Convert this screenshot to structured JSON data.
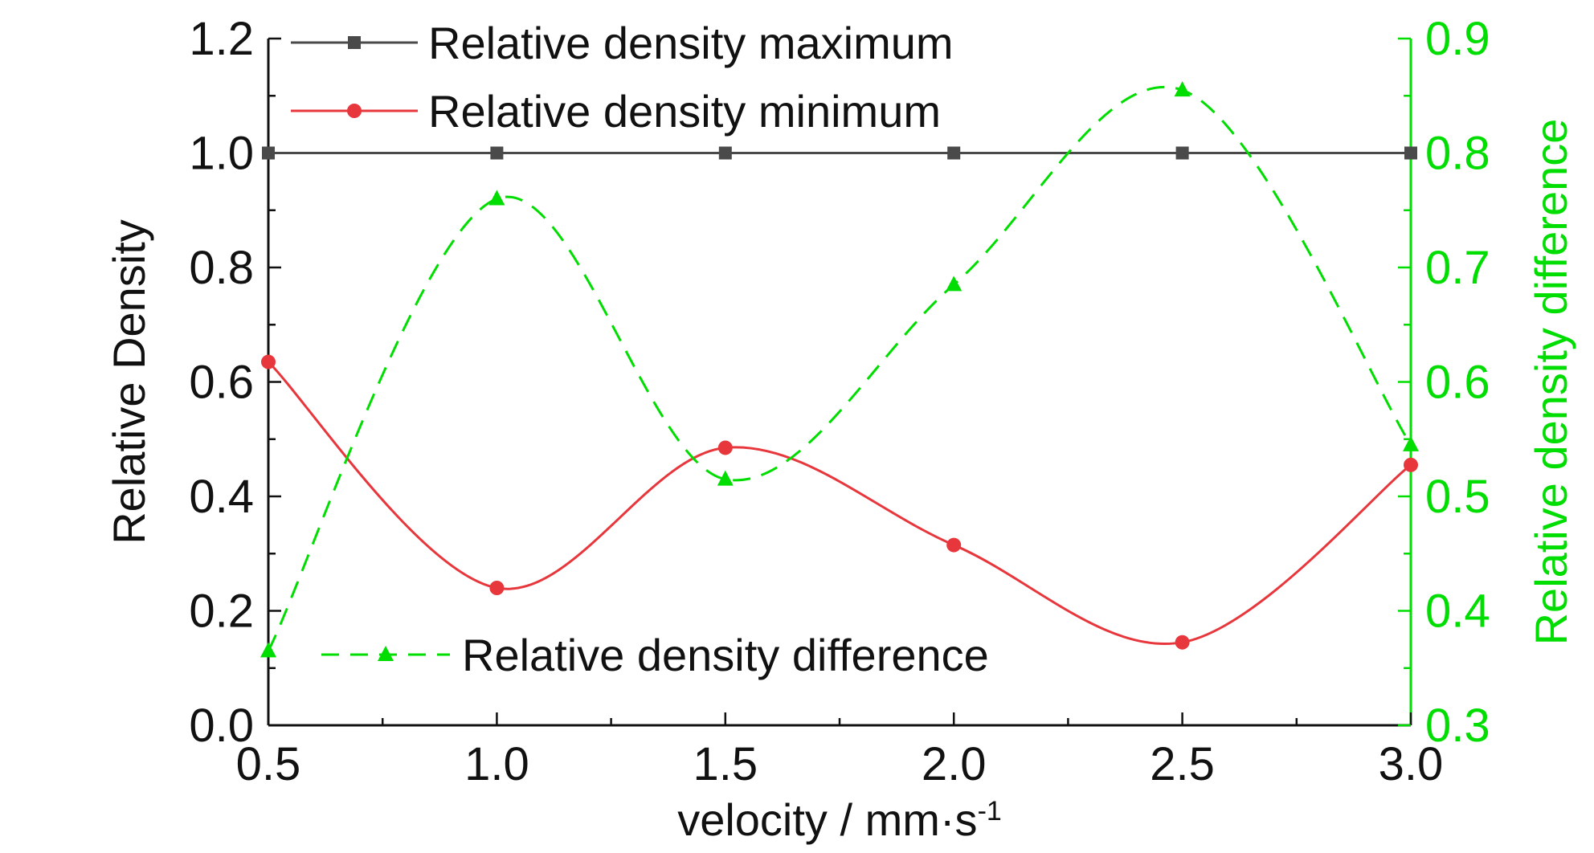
{
  "chart_data": {
    "type": "line",
    "x": [
      0.5,
      1.0,
      1.5,
      2.0,
      2.5,
      3.0
    ],
    "xlabel": "velocity / mm·s",
    "xlabel_sup": "-1",
    "ylabel": "Relative Density",
    "y2label": "Relative density difference",
    "xlim": [
      0.5,
      3.0
    ],
    "ylim": [
      0.0,
      1.2
    ],
    "y2lim": [
      0.3,
      0.9
    ],
    "x_ticks": [
      "0.5",
      "1.0",
      "1.5",
      "2.0",
      "2.5",
      "3.0"
    ],
    "y_ticks": [
      "0.0",
      "0.2",
      "0.4",
      "0.6",
      "0.8",
      "1.0",
      "1.2"
    ],
    "y2_ticks": [
      "0.3",
      "0.4",
      "0.5",
      "0.6",
      "0.7",
      "0.8",
      "0.9"
    ],
    "series": [
      {
        "name": "Relative density maximum",
        "axis": "left",
        "marker": "square",
        "line": "solid",
        "color": "#4a4a4a",
        "values": [
          1.0,
          1.0,
          1.0,
          1.0,
          1.0,
          1.0
        ]
      },
      {
        "name": "Relative density minimum",
        "axis": "left",
        "marker": "circle",
        "line": "solid",
        "color": "#e8373c",
        "values": [
          0.635,
          0.24,
          0.485,
          0.315,
          0.145,
          0.455
        ]
      },
      {
        "name": "Relative density difference",
        "axis": "right",
        "marker": "triangle",
        "line": "dashed",
        "color": "#00dd00",
        "values": [
          0.365,
          0.76,
          0.515,
          0.685,
          0.855,
          0.545
        ]
      }
    ],
    "legend_placement": "top-left and bottom-left",
    "grid": false
  }
}
